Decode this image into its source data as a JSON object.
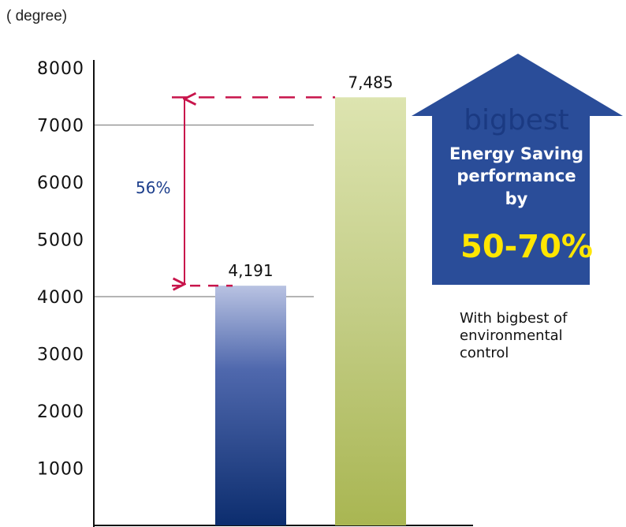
{
  "chart_data": {
    "type": "bar",
    "title": "",
    "ylabel": "( degree)",
    "xlabel": "",
    "ylim": [
      0,
      8000
    ],
    "yticks": [
      1000,
      2000,
      3000,
      4000,
      5000,
      6000,
      7000,
      8000
    ],
    "values": [
      4191,
      7485
    ],
    "value_labels": [
      "4,191",
      "7,485"
    ],
    "bar_colors": [
      "#0c2d6e",
      "#a9b652"
    ],
    "highlight_gridlines": [
      4000,
      7000
    ],
    "difference": {
      "label": "56%",
      "from": 4191,
      "to": 7485,
      "color": "#c8144b"
    },
    "callout": {
      "brand": "bigbest",
      "line1": "Energy Saving",
      "line2": "performance",
      "line3": "by",
      "highlight": "50-70%",
      "color": "#2a4d99"
    },
    "note": [
      "With bigbest of",
      "environmental",
      "control"
    ]
  }
}
